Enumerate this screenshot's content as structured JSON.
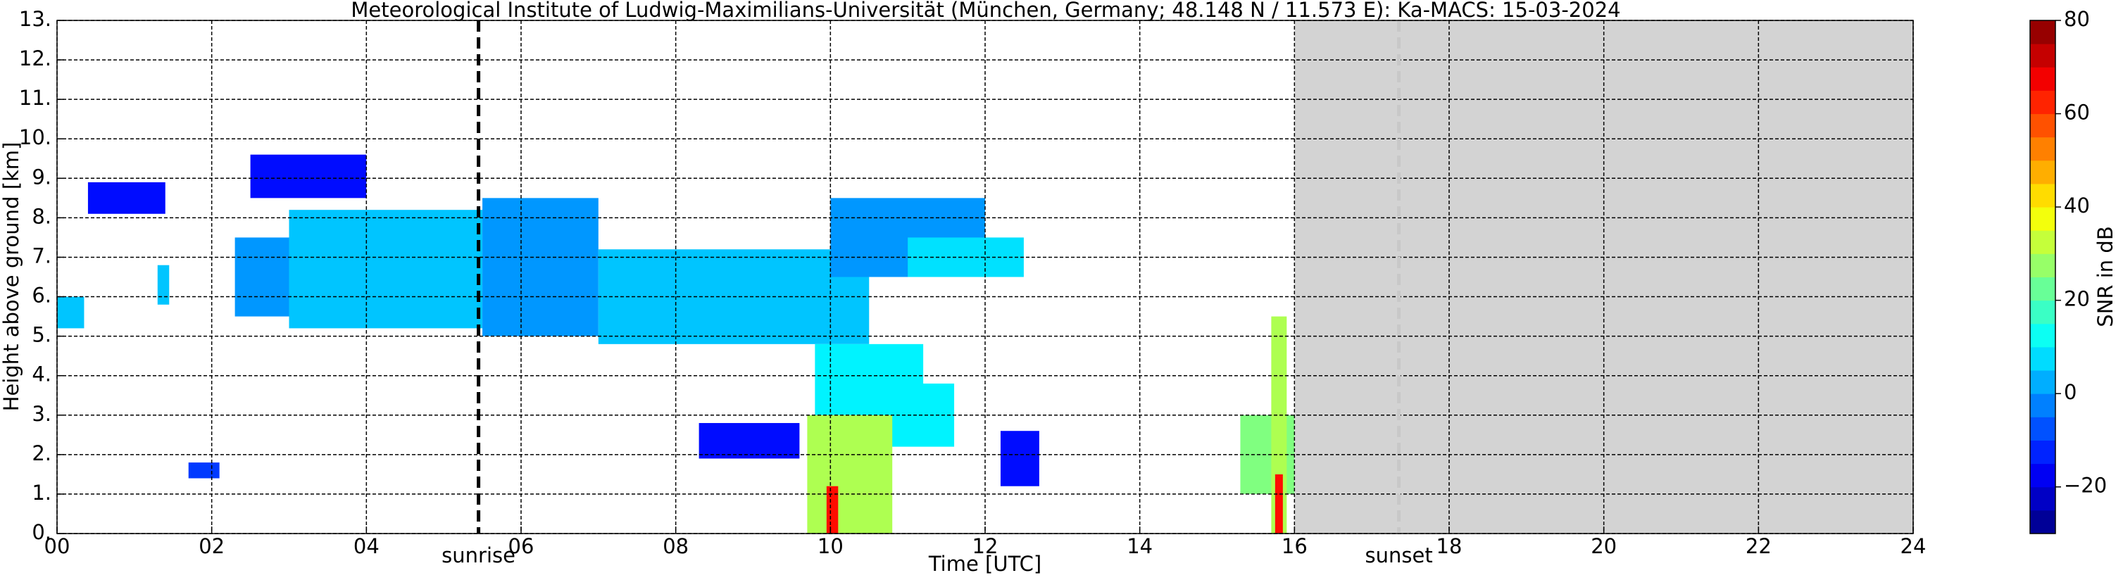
{
  "chart_data": {
    "type": "heatmap",
    "title": "Meteorological Institute of Ludwig-Maximilians-Universität (München, Germany; 48.148 N / 11.573 E):    Ka-MACS: 15-03-2024",
    "x_label": "Time [UTC]",
    "y_label": "Height above ground [km]",
    "colorbar_label": "SNR in dB",
    "xlim": [
      0,
      24
    ],
    "ylim": [
      0,
      13
    ],
    "clim": [
      -30,
      80
    ],
    "xticks": [
      {
        "value": 0,
        "label": "00"
      },
      {
        "value": 2,
        "label": "02"
      },
      {
        "value": 4,
        "label": "04"
      },
      {
        "value": 6,
        "label": "06"
      },
      {
        "value": 8,
        "label": "08"
      },
      {
        "value": 10,
        "label": "10"
      },
      {
        "value": 12,
        "label": "12"
      },
      {
        "value": 14,
        "label": "14"
      },
      {
        "value": 16,
        "label": "16"
      },
      {
        "value": 18,
        "label": "18"
      },
      {
        "value": 20,
        "label": "20"
      },
      {
        "value": 22,
        "label": "22"
      },
      {
        "value": 24,
        "label": "24"
      }
    ],
    "yticks": [
      {
        "value": 0,
        "label": "0."
      },
      {
        "value": 1,
        "label": "1."
      },
      {
        "value": 2,
        "label": "2."
      },
      {
        "value": 3,
        "label": "3."
      },
      {
        "value": 4,
        "label": "4."
      },
      {
        "value": 5,
        "label": "5."
      },
      {
        "value": 6,
        "label": "6."
      },
      {
        "value": 7,
        "label": "7."
      },
      {
        "value": 8,
        "label": "8."
      },
      {
        "value": 9,
        "label": "9."
      },
      {
        "value": 10,
        "label": "10."
      },
      {
        "value": 11,
        "label": "11."
      },
      {
        "value": 12,
        "label": "12."
      },
      {
        "value": 13,
        "label": "13."
      }
    ],
    "cticks": [
      {
        "value": -20,
        "label": "−20"
      },
      0,
      20,
      40,
      60,
      80
    ],
    "grid": true,
    "sunrise": {
      "label": "sunrise",
      "x": 5.45
    },
    "sunset": {
      "label": "sunset",
      "x": 17.35
    },
    "no_data_from": 16,
    "regions": [
      {
        "x0": 0,
        "x1": 0.35,
        "y0": 5.2,
        "y1": 6.0,
        "snr": 5
      },
      {
        "x0": 0.4,
        "x1": 1.4,
        "y0": 8.1,
        "y1": 8.9,
        "snr": -15
      },
      {
        "x0": 1.3,
        "x1": 1.45,
        "y0": 5.8,
        "y1": 6.8,
        "snr": 5
      },
      {
        "x0": 2.5,
        "x1": 4.0,
        "y0": 8.5,
        "y1": 9.6,
        "snr": -15
      },
      {
        "x0": 2.3,
        "x1": 3.0,
        "y0": 5.5,
        "y1": 7.5,
        "snr": 0
      },
      {
        "x0": 3.0,
        "x1": 5.5,
        "y0": 5.2,
        "y1": 8.2,
        "snr": 5
      },
      {
        "x0": 5.5,
        "x1": 7.0,
        "y0": 5.0,
        "y1": 8.5,
        "snr": 0
      },
      {
        "x0": 7.0,
        "x1": 10.5,
        "y0": 4.8,
        "y1": 7.2,
        "snr": 5
      },
      {
        "x0": 10.0,
        "x1": 12.0,
        "y0": 6.5,
        "y1": 8.5,
        "snr": 0
      },
      {
        "x0": 11.0,
        "x1": 12.5,
        "y0": 6.5,
        "y1": 7.5,
        "snr": 8
      },
      {
        "x0": 9.8,
        "x1": 11.2,
        "y0": 3.0,
        "y1": 4.8,
        "snr": 10
      },
      {
        "x0": 10.4,
        "x1": 11.6,
        "y0": 2.2,
        "y1": 3.8,
        "snr": 10
      },
      {
        "x0": 9.7,
        "x1": 10.8,
        "y0": 0,
        "y1": 3.0,
        "snr": 30
      },
      {
        "x0": 9.95,
        "x1": 10.1,
        "y0": 0,
        "y1": 1.2,
        "snr": 65
      },
      {
        "x0": 15.3,
        "x1": 16.0,
        "y0": 1.0,
        "y1": 3.0,
        "snr": 25
      },
      {
        "x0": 15.7,
        "x1": 15.9,
        "y0": 0,
        "y1": 5.5,
        "snr": 30
      },
      {
        "x0": 15.75,
        "x1": 15.85,
        "y0": 0,
        "y1": 1.5,
        "snr": 65
      },
      {
        "x0": 1.7,
        "x1": 2.1,
        "y0": 1.4,
        "y1": 1.8,
        "snr": -10
      },
      {
        "x0": 8.3,
        "x1": 9.6,
        "y0": 1.9,
        "y1": 2.8,
        "snr": -15
      },
      {
        "x0": 12.2,
        "x1": 12.7,
        "y0": 1.2,
        "y1": 2.6,
        "snr": -15
      }
    ]
  }
}
